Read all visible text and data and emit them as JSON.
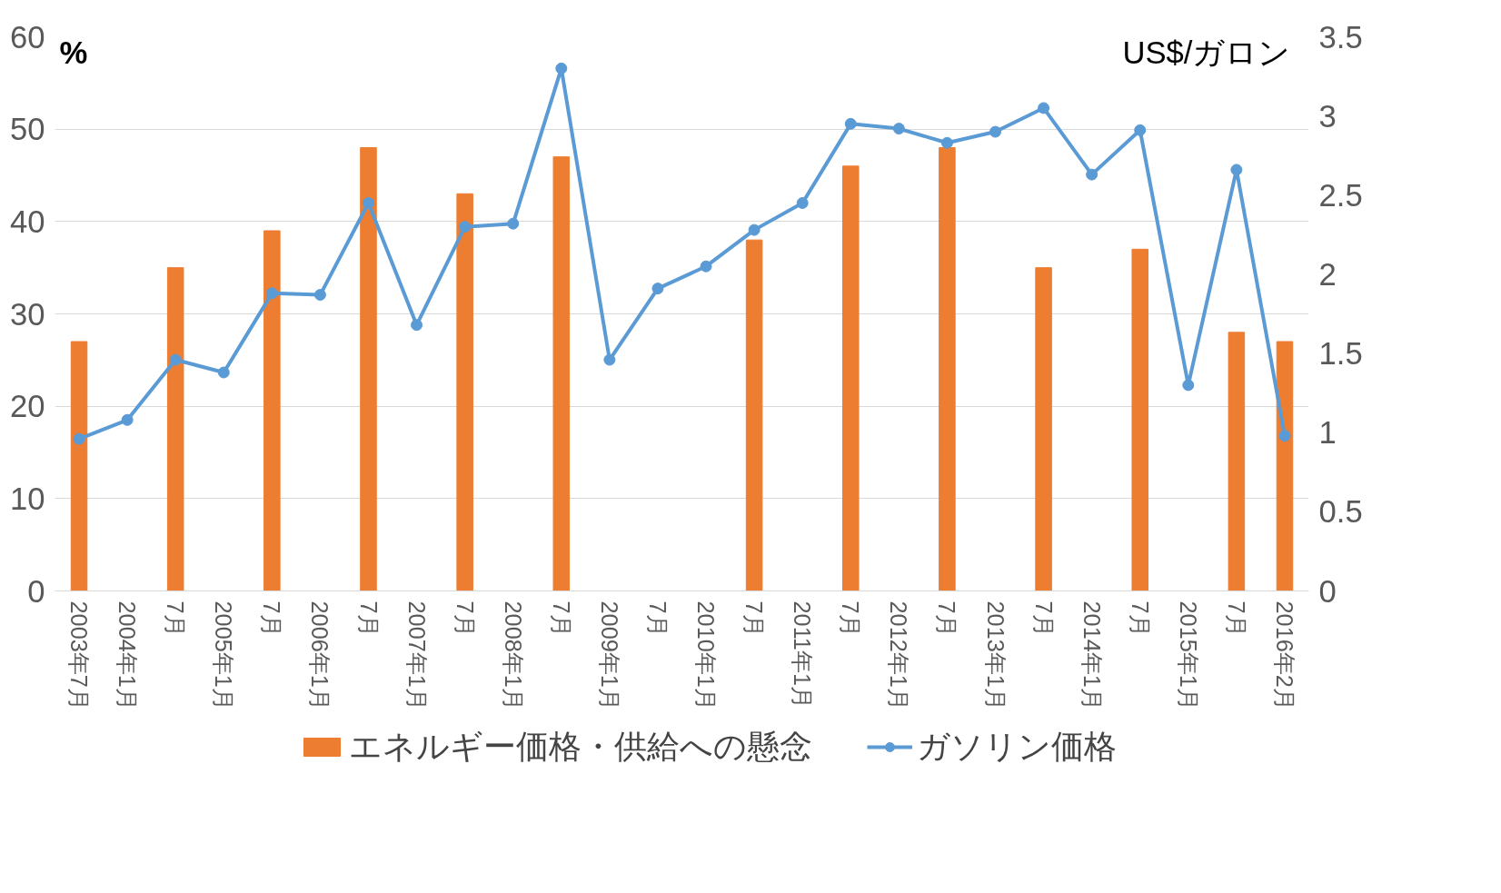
{
  "chart_data": {
    "type": "bar",
    "ylabel": "%",
    "y2label": "US$/ガロン",
    "categories": [
      "2003年7月",
      "2004年1月",
      "7月",
      "2005年1月",
      "7月",
      "2006年1月",
      "7月",
      "2007年1月",
      "7月",
      "2008年1月",
      "7月",
      "2009年1月",
      "7月",
      "2010年1月",
      "7月",
      "2011年1月",
      "7月",
      "2012年1月",
      "7月",
      "2013年1月",
      "7月",
      "2014年1月",
      "7月",
      "2015年1月",
      "7月",
      "2016年2月"
    ],
    "series": [
      {
        "name": "エネルギー価格・供給への懸念",
        "color": "#ed7d31",
        "values": [
          27,
          null,
          35,
          null,
          39,
          null,
          48,
          null,
          43,
          null,
          47,
          null,
          null,
          null,
          38,
          null,
          46,
          null,
          48,
          null,
          35,
          null,
          37,
          null,
          28,
          27
        ]
      },
      {
        "name": "ガソリン価格",
        "type": "line",
        "axis": "y2",
        "color": "#5b9bd5",
        "marker": "circle",
        "values": [
          0.96,
          1.08,
          1.46,
          1.38,
          1.88,
          1.87,
          2.45,
          1.68,
          2.3,
          2.32,
          3.3,
          1.46,
          1.91,
          2.05,
          2.28,
          2.45,
          2.95,
          2.92,
          2.83,
          2.9,
          3.05,
          2.63,
          2.91,
          1.3,
          2.66,
          0.98
        ]
      }
    ],
    "ylim": [
      0,
      60
    ],
    "yticks": [
      0,
      10,
      20,
      30,
      40,
      50,
      60
    ],
    "y2lim": [
      0,
      3.5
    ],
    "y2ticks": [
      0,
      0.5,
      1,
      1.5,
      2,
      2.5,
      3,
      3.5
    ],
    "grid": "y",
    "legend": "bottom"
  }
}
